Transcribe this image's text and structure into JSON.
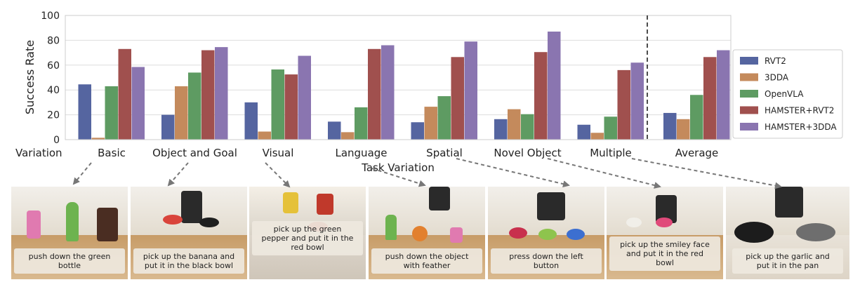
{
  "chart_data": {
    "type": "bar",
    "ylabel": "Success Rate",
    "xlabel": "Task Variation",
    "row_label": "Variation",
    "ylim": [
      0,
      100
    ],
    "yticks": [
      0,
      20,
      40,
      60,
      80,
      100
    ],
    "grid": true,
    "legend_position": "right",
    "categories": [
      "Basic",
      "Object and Goal",
      "Visual",
      "Language",
      "Spatial",
      "Novel Object",
      "Multiple",
      "Average"
    ],
    "series": [
      {
        "name": "RVT2",
        "color": "#5565a0",
        "values": [
          44.5,
          20,
          30,
          14.5,
          14,
          16.5,
          12,
          21.5
        ]
      },
      {
        "name": "3DDA",
        "color": "#c48a5c",
        "values": [
          1.5,
          43,
          6.5,
          6,
          26.5,
          24.5,
          5.5,
          16.5
        ]
      },
      {
        "name": "OpenVLA",
        "color": "#5e9b62",
        "values": [
          43,
          54,
          56.5,
          26,
          35,
          20.5,
          18.5,
          36
        ]
      },
      {
        "name": "HAMSTER+RVT2",
        "color": "#a0504e",
        "values": [
          73,
          72,
          52.5,
          73,
          66.5,
          70.5,
          56,
          66.5
        ]
      },
      {
        "name": "HAMSTER+3DDA",
        "color": "#8a75b0",
        "values": [
          58.5,
          74.5,
          67.5,
          76,
          79,
          87,
          62,
          72
        ]
      }
    ]
  },
  "examples": [
    {
      "caption": "push down the green bottle"
    },
    {
      "caption": "pick up the banana and put it in the black bowl"
    },
    {
      "caption": "pick up the green pepper and put it in the red bowl"
    },
    {
      "caption": "push down the object with feather"
    },
    {
      "caption": "press down the left button"
    },
    {
      "caption": "pick up the smiley face and put it in the red bowl"
    },
    {
      "caption": "pick up the garlic and put it in the pan"
    }
  ]
}
